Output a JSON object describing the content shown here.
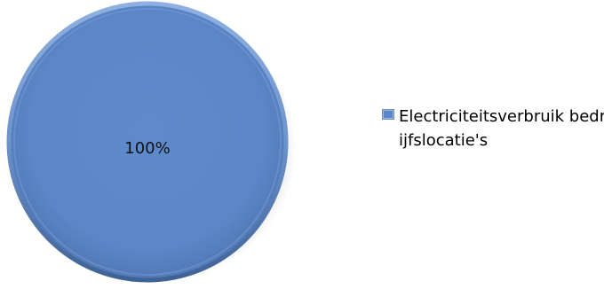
{
  "chart_data": {
    "type": "pie",
    "title": "",
    "categories": [
      "Electriciteitsverbruik bedrijfslocatie's"
    ],
    "values": [
      100
    ],
    "data_labels": [
      "100%"
    ],
    "colors": [
      "#5b86c7"
    ],
    "legend": {
      "position": "right",
      "entries": [
        "Electriciteitsverbruik bedrijfslocatie's"
      ]
    }
  }
}
